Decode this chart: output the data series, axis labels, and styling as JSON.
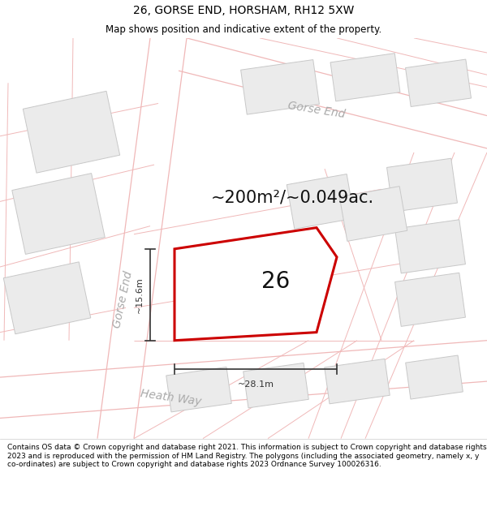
{
  "title": "26, GORSE END, HORSHAM, RH12 5XW",
  "subtitle": "Map shows position and indicative extent of the property.",
  "footer": "Contains OS data © Crown copyright and database right 2021. This information is subject to Crown copyright and database rights 2023 and is reproduced with the permission of HM Land Registry. The polygons (including the associated geometry, namely x, y co-ordinates) are subject to Crown copyright and database rights 2023 Ordnance Survey 100026316.",
  "property_stroke": "#cc0000",
  "property_lw": 2.0,
  "area_text": "~200m²/~0.049ac.",
  "number_text": "26",
  "dim_width": "~28.1m",
  "dim_height": "~15.6m",
  "title_fontsize": 10,
  "subtitle_fontsize": 8.5,
  "footer_fontsize": 6.5,
  "map_area_fontsize": 15,
  "number_fontsize": 20,
  "label_fontsize": 10,
  "dim_fontsize": 8,
  "map_bg": "#f7f4f4",
  "block_fill": "#ebebeb",
  "block_edge": "#c8c8c8",
  "road_line": "#f0b8b8",
  "road_line_lw": 0.8,
  "dim_color": "#333333",
  "label_color": "#aaaaaa",
  "street_label_fontsize": 10
}
